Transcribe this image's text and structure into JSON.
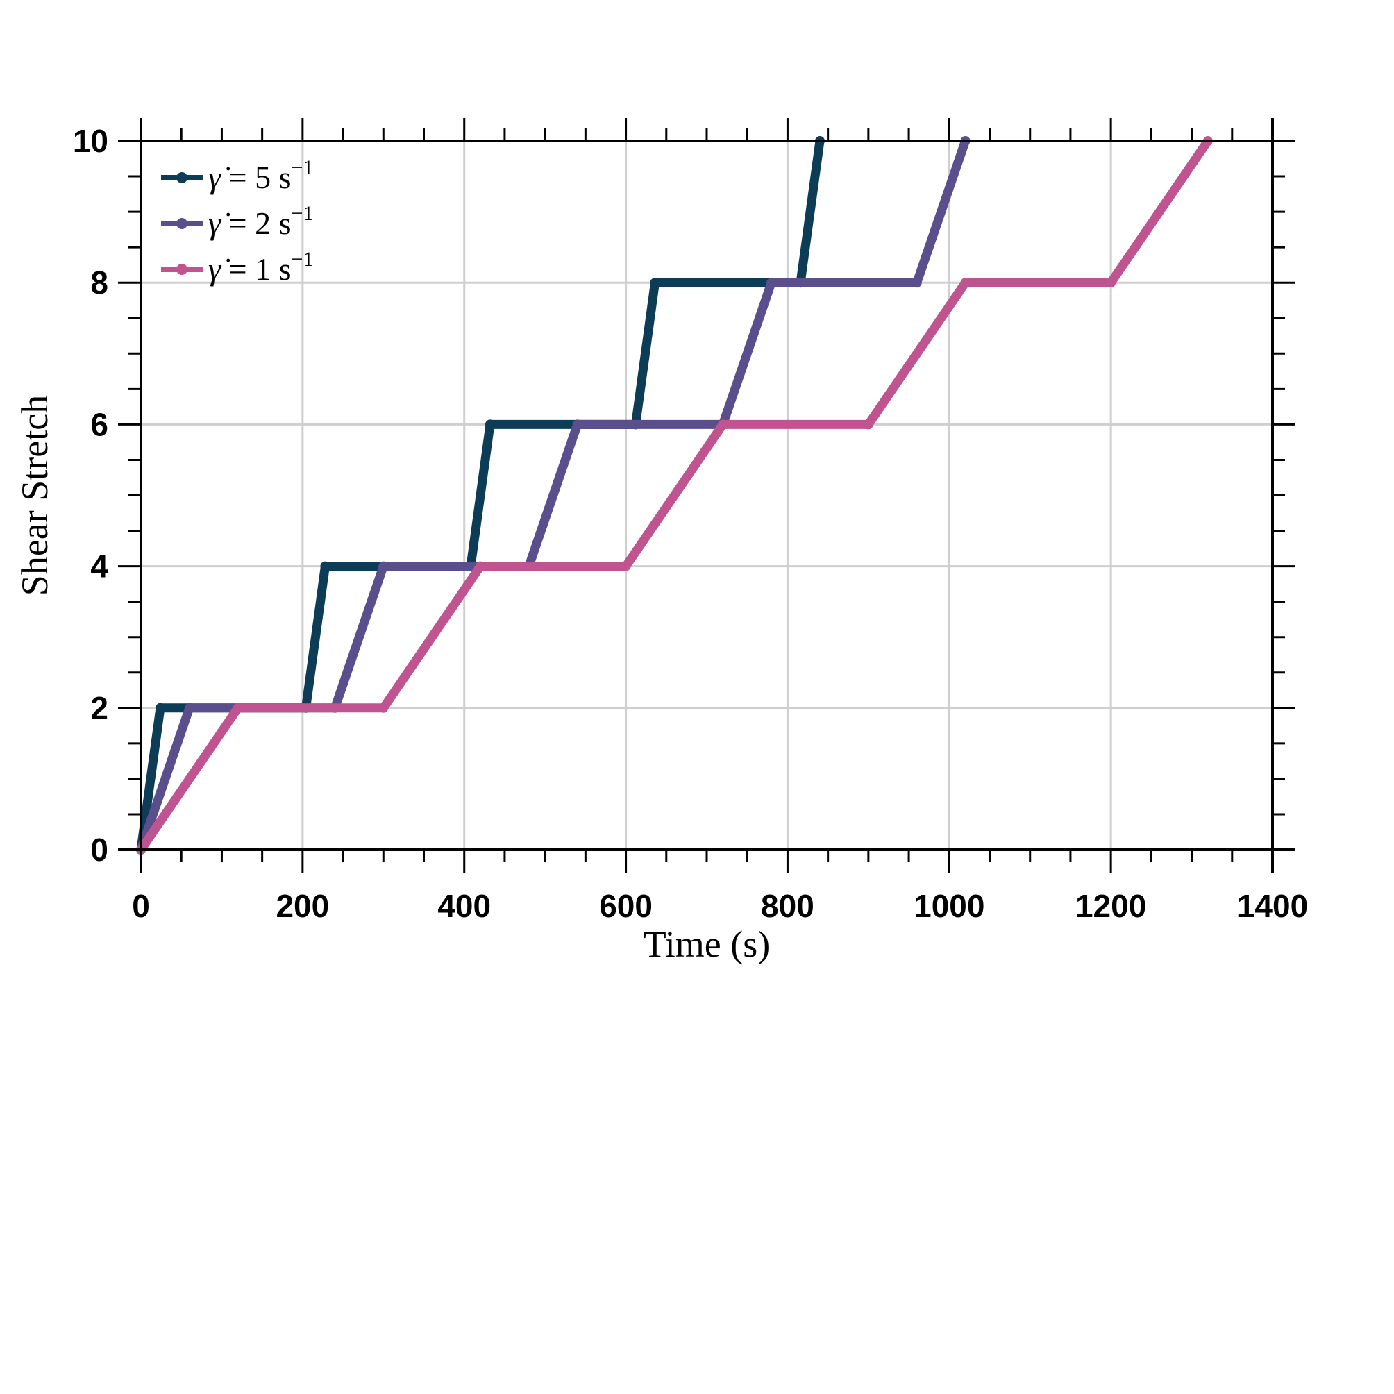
{
  "chart_data": {
    "type": "line",
    "title": "",
    "xlabel": "Time (s)",
    "ylabel": "Shear Stretch",
    "xlim": [
      0,
      1400
    ],
    "ylim": [
      0,
      10
    ],
    "xticks": [
      0,
      200,
      400,
      600,
      800,
      1000,
      1200,
      1400
    ],
    "yticks": [
      0,
      2,
      4,
      6,
      8,
      10
    ],
    "x_minor_step": 50,
    "y_minor_step": 0.5,
    "grid": true,
    "legend_position": "top-left",
    "series": [
      {
        "name": "γ̇ = 5 s⁻¹",
        "rate": "5",
        "color": "#0d3d56",
        "x": [
          0,
          24,
          204,
          228,
          408,
          432,
          612,
          636,
          816,
          840
        ],
        "y": [
          0,
          2,
          2,
          4,
          4,
          6,
          6,
          8,
          8,
          10
        ]
      },
      {
        "name": "γ̇ = 2 s⁻¹",
        "rate": "2",
        "color": "#5a4e8c",
        "x": [
          0,
          60,
          240,
          300,
          480,
          540,
          720,
          780,
          960,
          1020
        ],
        "y": [
          0,
          2,
          2,
          4,
          4,
          6,
          6,
          8,
          8,
          10
        ]
      },
      {
        "name": "γ̇ = 1 s⁻¹",
        "rate": "1",
        "color": "#c05490",
        "x": [
          0,
          120,
          300,
          420,
          600,
          720,
          900,
          1020,
          1200,
          1320
        ],
        "y": [
          0,
          2,
          2,
          4,
          4,
          6,
          6,
          8,
          8,
          10
        ]
      }
    ]
  }
}
